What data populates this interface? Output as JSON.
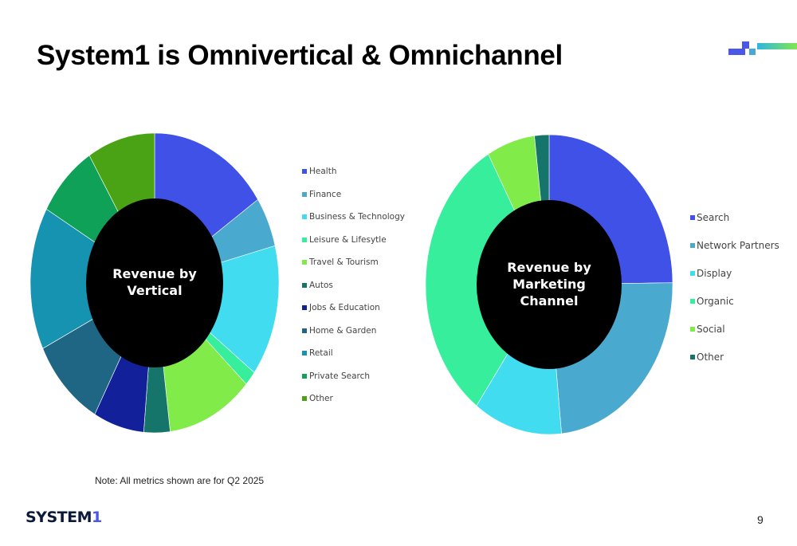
{
  "title": "System1 is Omnivertical & Omnichannel",
  "note": "Note: All metrics shown are for Q2 2025",
  "footer": {
    "logo_text": "SYSTEM",
    "logo_one": "1",
    "page_number": "9"
  },
  "colors": {
    "deco_dark": "#4b57e6",
    "deco_light": "#4aa9cf",
    "deco_gradient_start": "#2fb6e0",
    "deco_gradient_end": "#86e84a",
    "donut_hole": "#000000",
    "slice_border": "#ffffff"
  },
  "chart_data": [
    {
      "type": "pie",
      "variant": "donut",
      "center_label": [
        "Revenue by",
        "Vertical"
      ],
      "categories": [
        "Health",
        "Finance",
        "Business & Technology",
        "Leisure & Lifesytle",
        "Travel & Tourism",
        "Autos",
        "Jobs & Education",
        "Home & Garden",
        "Retail",
        "Private Search",
        "Other"
      ],
      "values": [
        15.6,
        5.4,
        14.2,
        1.6,
        11.2,
        3.4,
        6.6,
        9.8,
        15.4,
        8.0,
        8.8
      ],
      "colors": [
        "#3f51e6",
        "#4aa9cf",
        "#41dcf0",
        "#36ee9c",
        "#80eb49",
        "#16756b",
        "#12209a",
        "#1f6584",
        "#1693b1",
        "#10a158",
        "#49a314"
      ],
      "legend_position": "right"
    },
    {
      "type": "pie",
      "variant": "donut",
      "center_label": [
        "Revenue by",
        "Marketing",
        "Channel"
      ],
      "categories": [
        "Search",
        "Network Partners",
        "Display",
        "Organic",
        "Social",
        "Other"
      ],
      "values": [
        24.8,
        23.6,
        11.6,
        31.8,
        6.3,
        1.9
      ],
      "colors": [
        "#3f51e6",
        "#4aa9cf",
        "#41dcf0",
        "#36ee9c",
        "#80eb49",
        "#16756b"
      ],
      "legend_position": "right"
    }
  ]
}
